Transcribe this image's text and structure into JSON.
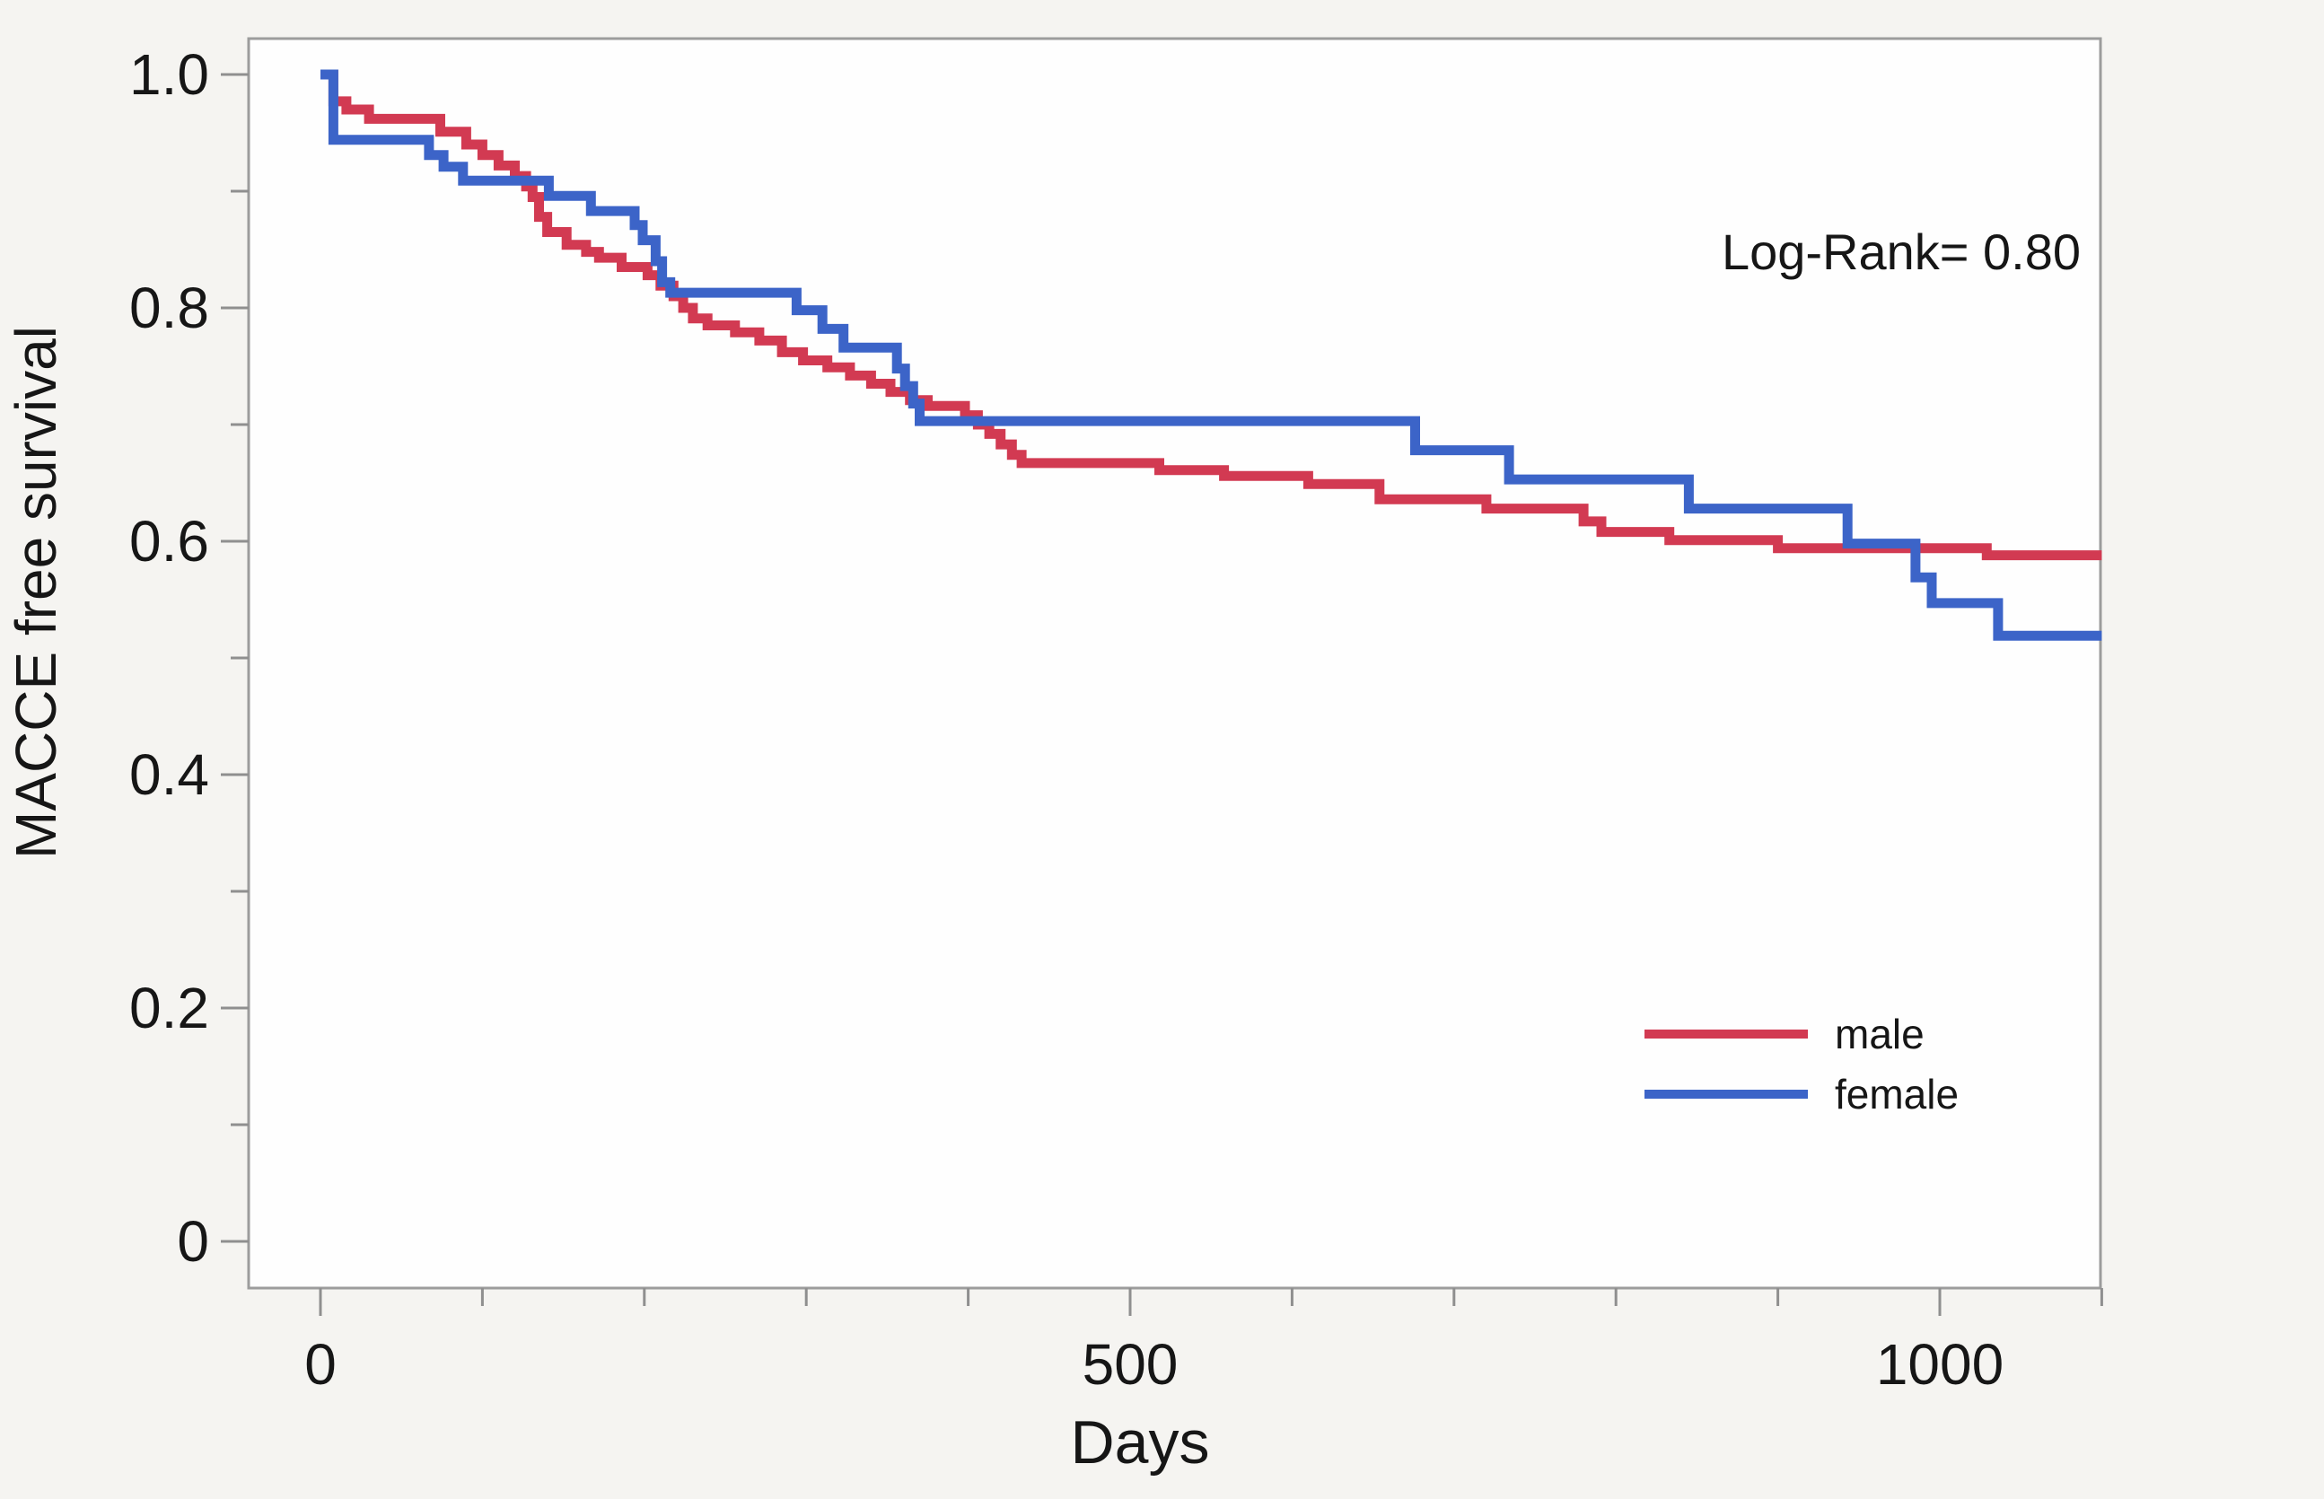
{
  "colors": {
    "male_line": "#d23a52",
    "female_line": "#3c64c8",
    "frame": "#9c9c9c",
    "tick": "#8f8f8f",
    "plot_background": "#fefefe",
    "page_background": "#f5f4f1",
    "text": "#161616"
  },
  "chart_data": {
    "type": "line",
    "variant": "kaplan-meier-step",
    "xlabel": "Days",
    "ylabel": "MACCE free survival",
    "annotation": "Log-Rank= 0.80",
    "x_axis": {
      "major_ticks": [
        0,
        500,
        1000
      ],
      "major_tick_labels": [
        "0",
        "500",
        "1000"
      ],
      "minor_tick_step": 100,
      "min": 0,
      "max": 1100
    },
    "y_axis": {
      "major_ticks": [
        0,
        0.2,
        0.4,
        0.6,
        0.8,
        1.0
      ],
      "major_tick_labels": [
        "0",
        "0.2",
        "0.4",
        "0.6",
        "0.8",
        "1.0"
      ],
      "minor_ticks": [
        0.1,
        0.3,
        0.5,
        0.7,
        0.9
      ],
      "min": 0,
      "max": 1.0
    },
    "grid": false,
    "legend_position": "lower-right-inside",
    "legend": [
      {
        "label": "male",
        "color": "#d23a52"
      },
      {
        "label": "female",
        "color": "#3c64c8"
      }
    ],
    "end_day": 1100,
    "series": [
      {
        "name": "male",
        "color": "#d23a52",
        "points": [
          [
            0,
            1.0
          ],
          [
            8,
            0.977
          ],
          [
            16,
            0.97
          ],
          [
            30,
            0.962
          ],
          [
            74,
            0.951
          ],
          [
            90,
            0.94
          ],
          [
            100,
            0.931
          ],
          [
            110,
            0.922
          ],
          [
            120,
            0.913
          ],
          [
            127,
            0.904
          ],
          [
            131,
            0.895
          ],
          [
            135,
            0.878
          ],
          [
            140,
            0.865
          ],
          [
            152,
            0.854
          ],
          [
            164,
            0.848
          ],
          [
            172,
            0.843
          ],
          [
            186,
            0.835
          ],
          [
            202,
            0.828
          ],
          [
            210,
            0.819
          ],
          [
            218,
            0.81
          ],
          [
            224,
            0.8
          ],
          [
            230,
            0.791
          ],
          [
            239,
            0.785
          ],
          [
            256,
            0.779
          ],
          [
            271,
            0.772
          ],
          [
            285,
            0.762
          ],
          [
            298,
            0.755
          ],
          [
            313,
            0.749
          ],
          [
            327,
            0.742
          ],
          [
            340,
            0.735
          ],
          [
            352,
            0.728
          ],
          [
            364,
            0.721
          ],
          [
            375,
            0.716
          ],
          [
            398,
            0.708
          ],
          [
            406,
            0.7
          ],
          [
            413,
            0.692
          ],
          [
            420,
            0.683
          ],
          [
            427,
            0.674
          ],
          [
            433,
            0.667
          ],
          [
            518,
            0.661
          ],
          [
            558,
            0.656
          ],
          [
            610,
            0.649
          ],
          [
            654,
            0.636
          ],
          [
            720,
            0.628
          ],
          [
            780,
            0.617
          ],
          [
            791,
            0.608
          ],
          [
            833,
            0.601
          ],
          [
            900,
            0.594
          ],
          [
            1029,
            0.588
          ]
        ]
      },
      {
        "name": "female",
        "color": "#3c64c8",
        "points": [
          [
            0,
            1.0
          ],
          [
            8,
            0.944
          ],
          [
            67,
            0.931
          ],
          [
            76,
            0.921
          ],
          [
            88,
            0.909
          ],
          [
            141,
            0.896
          ],
          [
            167,
            0.883
          ],
          [
            194,
            0.871
          ],
          [
            199,
            0.858
          ],
          [
            207,
            0.84
          ],
          [
            211,
            0.822
          ],
          [
            216,
            0.813
          ],
          [
            294,
            0.798
          ],
          [
            310,
            0.782
          ],
          [
            323,
            0.766
          ],
          [
            356,
            0.748
          ],
          [
            361,
            0.733
          ],
          [
            366,
            0.718
          ],
          [
            370,
            0.703
          ],
          [
            676,
            0.678
          ],
          [
            734,
            0.653
          ],
          [
            845,
            0.628
          ],
          [
            943,
            0.598
          ],
          [
            985,
            0.569
          ],
          [
            995,
            0.547
          ],
          [
            1036,
            0.519
          ]
        ]
      }
    ]
  }
}
